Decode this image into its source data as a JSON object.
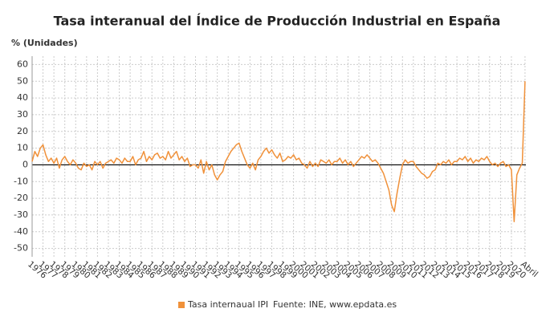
{
  "chart_data": {
    "type": "line",
    "title": "Tasa interanual del Índice de Producción Industrial en España",
    "y_label": "% (Unidades)",
    "source": "Fuente: INE, www.epdata.es",
    "xlim": [
      1976,
      2021.33
    ],
    "ylim": [
      -55,
      65
    ],
    "yticks": [
      -50,
      -40,
      -30,
      -20,
      -10,
      0,
      10,
      20,
      30,
      40,
      50,
      60
    ],
    "xticks": [
      1976,
      1977,
      1978,
      1979,
      1980,
      1981,
      1982,
      1983,
      1984,
      1985,
      1986,
      1987,
      1988,
      1989,
      1990,
      1991,
      1992,
      1993,
      1994,
      1995,
      1996,
      1997,
      1998,
      1999,
      2000,
      2001,
      2002,
      2003,
      2004,
      2005,
      2006,
      2007,
      2008,
      2009,
      2010,
      2011,
      2012,
      2013,
      2014,
      2015,
      2016,
      2017,
      2018,
      2019,
      2020,
      {
        "value": 2021.25,
        "label": "Abril"
      }
    ],
    "grid": true,
    "series": [
      {
        "name": "Tasa internaual IPI",
        "color": "#f0913a",
        "x": [
          1976,
          1976.25,
          1976.5,
          1976.75,
          1977,
          1977.25,
          1977.5,
          1977.75,
          1978,
          1978.25,
          1978.5,
          1978.75,
          1979,
          1979.25,
          1979.5,
          1979.75,
          1980,
          1980.25,
          1980.5,
          1980.75,
          1981,
          1981.25,
          1981.5,
          1981.75,
          1982,
          1982.25,
          1982.5,
          1982.75,
          1983,
          1983.25,
          1983.5,
          1983.75,
          1984,
          1984.25,
          1984.5,
          1984.75,
          1985,
          1985.25,
          1985.5,
          1985.75,
          1986,
          1986.25,
          1986.5,
          1986.75,
          1987,
          1987.25,
          1987.5,
          1987.75,
          1988,
          1988.25,
          1988.5,
          1988.75,
          1989,
          1989.25,
          1989.5,
          1989.75,
          1990,
          1990.25,
          1990.5,
          1990.75,
          1991,
          1991.25,
          1991.5,
          1991.75,
          1992,
          1992.25,
          1992.5,
          1992.75,
          1993,
          1993.25,
          1993.5,
          1993.75,
          1994,
          1994.25,
          1994.5,
          1994.75,
          1995,
          1995.25,
          1995.5,
          1995.75,
          1996,
          1996.25,
          1996.5,
          1996.75,
          1997,
          1997.25,
          1997.5,
          1997.75,
          1998,
          1998.25,
          1998.5,
          1998.75,
          1999,
          1999.25,
          1999.5,
          1999.75,
          2000,
          2000.25,
          2000.5,
          2000.75,
          2001,
          2001.25,
          2001.5,
          2001.75,
          2002,
          2002.25,
          2002.5,
          2002.75,
          2003,
          2003.25,
          2003.5,
          2003.75,
          2004,
          2004.25,
          2004.5,
          2004.75,
          2005,
          2005.25,
          2005.5,
          2005.75,
          2006,
          2006.25,
          2006.5,
          2006.75,
          2007,
          2007.25,
          2007.5,
          2007.75,
          2008,
          2008.25,
          2008.5,
          2008.75,
          2009,
          2009.25,
          2009.5,
          2009.75,
          2010,
          2010.25,
          2010.5,
          2010.75,
          2011,
          2011.25,
          2011.5,
          2011.75,
          2012,
          2012.25,
          2012.5,
          2012.75,
          2013,
          2013.25,
          2013.5,
          2013.75,
          2014,
          2014.25,
          2014.5,
          2014.75,
          2015,
          2015.25,
          2015.5,
          2015.75,
          2016,
          2016.25,
          2016.5,
          2016.75,
          2017,
          2017.25,
          2017.5,
          2017.75,
          2018,
          2018.25,
          2018.5,
          2018.75,
          2019,
          2019.25,
          2019.5,
          2019.75,
          2020,
          2020.25,
          2020.5,
          2020.75,
          2021,
          2021.25
        ],
        "values": [
          2,
          8,
          5,
          10,
          12,
          6,
          2,
          4,
          1,
          4,
          -2,
          3,
          5,
          2,
          0,
          3,
          1,
          -2,
          -3,
          1,
          -1,
          0,
          -3,
          2,
          0,
          2,
          -2,
          1,
          2,
          3,
          1,
          4,
          3,
          1,
          4,
          2,
          2,
          5,
          0,
          3,
          4,
          8,
          2,
          5,
          3,
          6,
          7,
          4,
          5,
          3,
          8,
          4,
          6,
          8,
          3,
          5,
          2,
          4,
          -1,
          0,
          0,
          -2,
          3,
          -5,
          2,
          -3,
          0,
          -6,
          -9,
          -6,
          -4,
          2,
          5,
          8,
          10,
          12,
          13,
          8,
          4,
          0,
          -2,
          1,
          -3,
          3,
          5,
          8,
          10,
          7,
          9,
          6,
          4,
          7,
          2,
          3,
          5,
          4,
          6,
          3,
          4,
          1,
          0,
          -2,
          2,
          -1,
          1,
          -1,
          3,
          2,
          1,
          3,
          0,
          2,
          2,
          4,
          1,
          3,
          0,
          2,
          -1,
          1,
          3,
          5,
          4,
          6,
          4,
          2,
          3,
          1,
          -2,
          -5,
          -10,
          -15,
          -24,
          -28,
          -17,
          -8,
          0,
          3,
          1,
          2,
          2,
          -1,
          -3,
          -5,
          -6,
          -8,
          -7,
          -4,
          -3,
          1,
          0,
          2,
          1,
          3,
          0,
          2,
          2,
          4,
          3,
          5,
          2,
          4,
          1,
          3,
          2,
          4,
          3,
          5,
          2,
          0,
          1,
          -1,
          1,
          2,
          -1,
          0,
          -3,
          -34,
          -6,
          -2,
          1,
          50
        ]
      }
    ]
  }
}
